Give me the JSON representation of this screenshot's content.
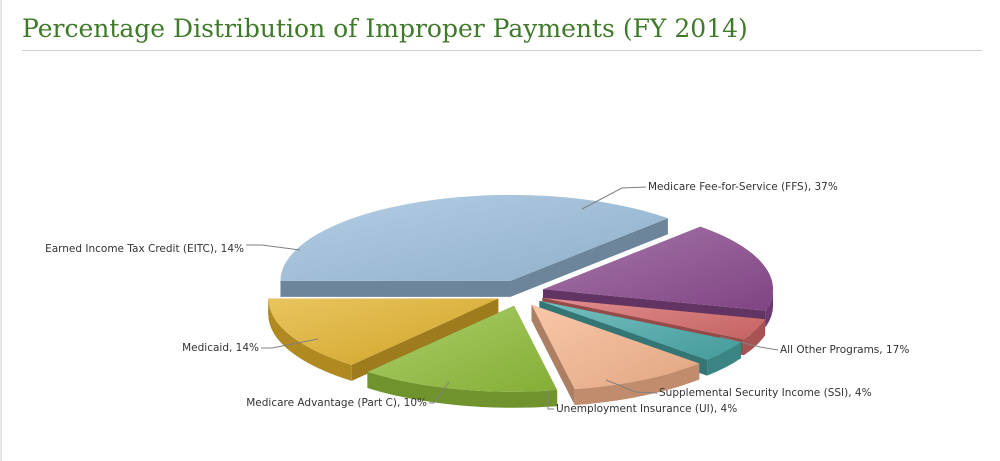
{
  "title": "Percentage Distribution of Improper Payments (FY 2014)",
  "chart_data": {
    "type": "pie",
    "title": "Percentage Distribution of Improper Payments (FY 2014)",
    "style": "exploded 3D pie",
    "legend": "none",
    "slices": [
      {
        "label": "Medicare Fee-for-Service (FFS), 37%",
        "category": "Medicare Fee-for-Service (FFS)",
        "value": 37,
        "color": "#9bbedc"
      },
      {
        "label": "All Other Programs, 17%",
        "category": "All Other Programs",
        "value": 17,
        "color": "#8a4a8e"
      },
      {
        "label": "Supplemental Security Income (SSI), 4%",
        "category": "Supplemental Security Income (SSI)",
        "value": 4,
        "color": "#d66a6a"
      },
      {
        "label": "Unemployment Insurance (UI), 4%",
        "category": "Unemployment Insurance (UI)",
        "value": 4,
        "color": "#4aa9a9"
      },
      {
        "label": "Medicare Advantage (Part C), 10%",
        "category": "Medicare Advantage (Part C)",
        "value": 10,
        "color": "#f6b48c"
      },
      {
        "label": "Medicaid, 14%",
        "category": "Medicaid",
        "value": 14,
        "color": "#90bd3a"
      },
      {
        "label": "Earned Income Tax Credit (EITC), 14%",
        "category": "Earned Income Tax Credit (EITC)",
        "value": 14,
        "color": "#e2b12a"
      }
    ]
  }
}
